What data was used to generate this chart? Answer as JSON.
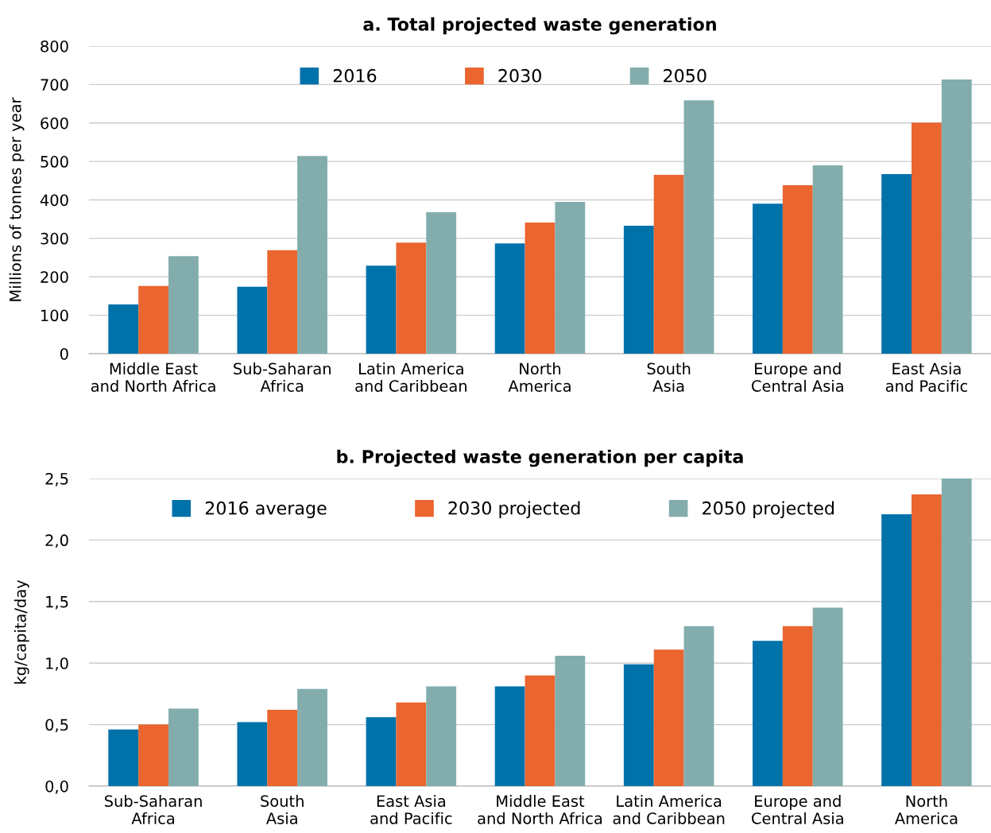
{
  "chart_data": [
    {
      "type": "bar",
      "title": "a. Total projected waste generation",
      "ylabel": "Millions of tonnes per year",
      "categories": [
        "Middle East\nand North Africa",
        "Sub-Saharan\nAfrica",
        "Latin America\nand Caribbean",
        "North\nAmerica",
        "South\nAsia",
        "Europe and\nCentral Asia",
        "East Asia\nand Pacific"
      ],
      "series": [
        {
          "name": "2016",
          "color": "#0072aa",
          "values": [
            128,
            174,
            229,
            287,
            333,
            390,
            467
          ]
        },
        {
          "name": "2030",
          "color": "#ea6530",
          "values": [
            176,
            269,
            289,
            341,
            465,
            438,
            601
          ]
        },
        {
          "name": "2050",
          "color": "#83adad",
          "values": [
            254,
            514,
            368,
            395,
            659,
            490,
            713
          ]
        }
      ],
      "ylim": [
        0,
        800
      ],
      "yticks": [
        0,
        100,
        200,
        300,
        400,
        500,
        600,
        700,
        800
      ],
      "grid": "y",
      "legend": "top"
    },
    {
      "type": "bar",
      "title": "b. Projected waste generation per capita",
      "ylabel": "kg/capita/day",
      "categories": [
        "Sub-Saharan\nAfrica",
        "South\nAsia",
        "East Asia\nand Pacific",
        "Middle East\nand North Africa",
        "Latin America\nand Caribbean",
        "Europe and\nCentral Asia",
        "North\nAmerica"
      ],
      "series": [
        {
          "name": "2016 average",
          "color": "#0072aa",
          "values": [
            0.46,
            0.52,
            0.56,
            0.81,
            0.99,
            1.18,
            2.21
          ]
        },
        {
          "name": "2030 projected",
          "color": "#ea6530",
          "values": [
            0.5,
            0.62,
            0.68,
            0.9,
            1.11,
            1.3,
            2.37
          ]
        },
        {
          "name": "2050 projected",
          "color": "#83adad",
          "values": [
            0.63,
            0.79,
            0.81,
            1.06,
            1.3,
            1.45,
            2.5
          ]
        }
      ],
      "ylim": [
        0,
        2.5
      ],
      "yticks": [
        {
          "value": 0,
          "label": "0,0"
        },
        {
          "value": 0.5,
          "label": "0,5"
        },
        {
          "value": 1.0,
          "label": "1,0"
        },
        {
          "value": 1.5,
          "label": "1,5"
        },
        {
          "value": 2.0,
          "label": "2,0"
        },
        {
          "value": 2.5,
          "label": "2,5"
        }
      ],
      "grid": "y",
      "legend": "top"
    }
  ]
}
